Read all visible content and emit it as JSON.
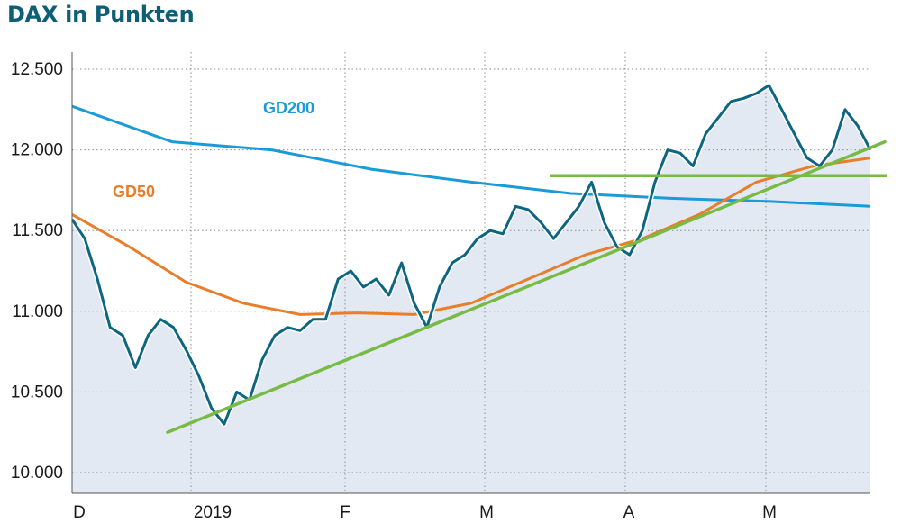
{
  "colors": {
    "title": "#0e5f76",
    "dax": "#0d6680",
    "gd200": "#1a9ad6",
    "gd50": "#e87e2a",
    "trend": "#78bb44",
    "area": "#e3e9f3",
    "grid": "#8c8c8c",
    "axis": "#555555",
    "line_halo": "#ffffff"
  },
  "chart_data": {
    "type": "line",
    "title": "DAX in Punkten",
    "xlabel": "",
    "ylabel": "",
    "x_tick_labels": [
      "D",
      "2019",
      "F",
      "M",
      "A",
      "M"
    ],
    "y_ticks": [
      10000,
      10500,
      11000,
      11500,
      12000,
      12500
    ],
    "y_tick_labels": [
      "10.000",
      "10.500",
      "11.000",
      "11.500",
      "12.000",
      "12.500"
    ],
    "ylim": [
      9950,
      12650
    ],
    "grid": {
      "vertical": "dotted, at month labels",
      "horizontal": "dotted, at y ticks"
    },
    "series": [
      {
        "name": "",
        "style": "line with shaded area",
        "values": [
          11570,
          11450,
          11200,
          10900,
          10850,
          10650,
          10850,
          10950,
          10900,
          10760,
          10600,
          10400,
          10300,
          10500,
          10450,
          10700,
          10850,
          10900,
          10880,
          10950,
          10950,
          11200,
          11250,
          11150,
          11200,
          11100,
          11300,
          11050,
          10900,
          11150,
          11300,
          11350,
          11450,
          11500,
          11480,
          11650,
          11630,
          11550,
          11450,
          11550,
          11650,
          11800,
          11550,
          11400,
          11350,
          11500,
          11800,
          12000,
          11980,
          11900,
          12100,
          12200,
          12300,
          12320,
          12350,
          12400,
          12250,
          12100,
          11950,
          11900,
          12000,
          12250,
          12150,
          12000
        ],
        "x_range": [
          "D",
          "M"
        ]
      },
      {
        "name": "GD200",
        "values": [
          12270,
          12050,
          12000,
          11880,
          11800,
          11730,
          11700,
          11680,
          11650
        ]
      },
      {
        "name": "GD50",
        "values": [
          11600,
          11400,
          11180,
          11050,
          10980,
          10990,
          10980,
          11050,
          11200,
          11350,
          11450,
          11600,
          11800,
          11900,
          11950
        ]
      }
    ],
    "annotations": [
      {
        "type": "trendline",
        "from": [
          "2019",
          10250
        ],
        "to": [
          "M",
          12050
        ]
      },
      {
        "type": "horizontal_line",
        "value": 11840,
        "from": "M",
        "to": "M"
      }
    ]
  }
}
